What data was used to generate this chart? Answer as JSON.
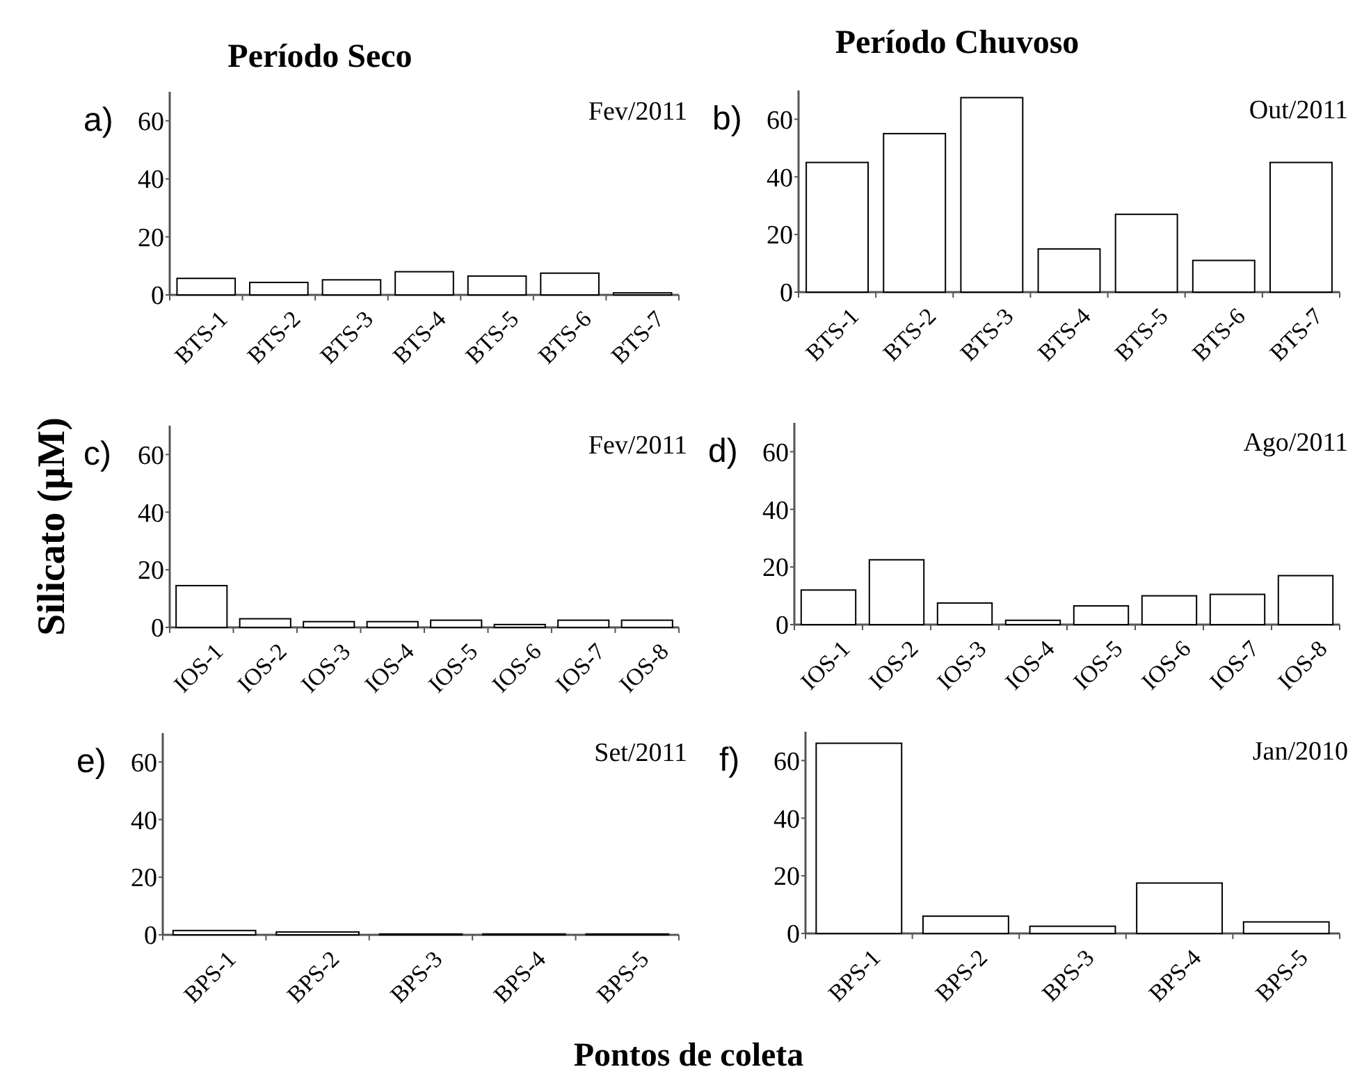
{
  "chart_data": [
    {
      "type": "bar",
      "title": "Período Seco",
      "annotations": [
        "a)",
        "Fev/2011"
      ],
      "categories": [
        "BTS-1",
        "BTS-2",
        "BTS-3",
        "BTS-4",
        "BTS-5",
        "BTS-6",
        "BTS-7"
      ],
      "values": [
        5.7,
        4.3,
        5.2,
        8,
        6.5,
        7.5,
        0.7
      ],
      "color": "#ffffff",
      "ylim": [
        0,
        70
      ],
      "yticks": [
        0,
        20,
        40,
        60
      ]
    },
    {
      "type": "bar",
      "title": "Período Chuvoso",
      "annotations": [
        "b)",
        "Out/2011"
      ],
      "categories": [
        "BTS-1",
        "BTS-2",
        "BTS-3",
        "BTS-4",
        "BTS-5",
        "BTS-6",
        "BTS-7"
      ],
      "values": [
        45,
        55,
        67.5,
        15,
        27,
        11,
        45
      ],
      "color": "#ffffff",
      "ylim": [
        0,
        70
      ],
      "yticks": [
        0,
        20,
        40,
        60
      ]
    },
    {
      "type": "bar",
      "ylabel": "Silicato (µM)",
      "annotations": [
        "c)",
        "Fev/2011"
      ],
      "categories": [
        "IOS-1",
        "IOS-2",
        "IOS-3",
        "IOS-4",
        "IOS-5",
        "IOS-6",
        "IOS-7",
        "IOS-8"
      ],
      "values": [
        14.5,
        3,
        2,
        2,
        2.5,
        1,
        2.5,
        2.5
      ],
      "color": "#ffffff",
      "ylim": [
        0,
        70
      ],
      "yticks": [
        0,
        20,
        40,
        60
      ]
    },
    {
      "type": "bar",
      "annotations": [
        "d)",
        "Ago/2011"
      ],
      "categories": [
        "IOS-1",
        "IOS-2",
        "IOS-3",
        "IOS-4",
        "IOS-5",
        "IOS-6",
        "IOS-7",
        "IOS-8"
      ],
      "values": [
        12,
        22.5,
        7.5,
        1.5,
        6.5,
        10,
        10.5,
        17
      ],
      "color": "#ffffff",
      "ylim": [
        0,
        70
      ],
      "yticks": [
        0,
        20,
        40,
        60
      ]
    },
    {
      "type": "bar",
      "xlabel": "Pontos de coleta",
      "annotations": [
        "e)",
        "Set/2011"
      ],
      "categories": [
        "BPS-1",
        "BPS-2",
        "BPS-3",
        "BPS-4",
        "BPS-5"
      ],
      "values": [
        1.5,
        1,
        0.3,
        0.3,
        0.3
      ],
      "color": "#ffffff",
      "ylim": [
        0,
        70
      ],
      "yticks": [
        0,
        20,
        40,
        60
      ]
    },
    {
      "type": "bar",
      "annotations": [
        "f)",
        "Jan/2010"
      ],
      "categories": [
        "BPS-1",
        "BPS-2",
        "BPS-3",
        "BPS-4",
        "BPS-5"
      ],
      "values": [
        66,
        6,
        2.5,
        17.5,
        4
      ],
      "color": "#ffffff",
      "ylim": [
        0,
        70
      ],
      "yticks": [
        0,
        20,
        40,
        60
      ]
    }
  ]
}
